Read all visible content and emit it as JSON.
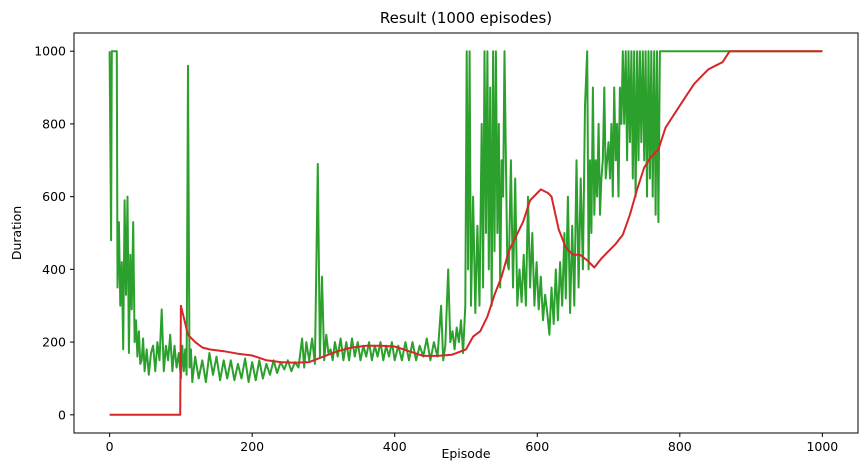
{
  "chart_data": {
    "type": "line",
    "title": "Result (1000 episodes)",
    "xlabel": "Episode",
    "ylabel": "Duration",
    "xlim": [
      -50,
      1050
    ],
    "ylim": [
      -50,
      1050
    ],
    "xticks": [
      0,
      200,
      400,
      600,
      800,
      1000
    ],
    "yticks": [
      0,
      200,
      400,
      600,
      800,
      1000
    ],
    "grid": false,
    "series": [
      {
        "color": "#2ca02c",
        "points": [
          [
            0,
            1000
          ],
          [
            2,
            480
          ],
          [
            3,
            1000
          ],
          [
            10,
            1000
          ],
          [
            11,
            350
          ],
          [
            13,
            530
          ],
          [
            15,
            300
          ],
          [
            17,
            420
          ],
          [
            19,
            180
          ],
          [
            21,
            590
          ],
          [
            23,
            330
          ],
          [
            25,
            600
          ],
          [
            27,
            170
          ],
          [
            29,
            440
          ],
          [
            31,
            290
          ],
          [
            33,
            530
          ],
          [
            35,
            200
          ],
          [
            37,
            260
          ],
          [
            39,
            160
          ],
          [
            41,
            230
          ],
          [
            43,
            140
          ],
          [
            45,
            150
          ],
          [
            47,
            210
          ],
          [
            49,
            120
          ],
          [
            52,
            180
          ],
          [
            55,
            110
          ],
          [
            58,
            170
          ],
          [
            61,
            190
          ],
          [
            64,
            120
          ],
          [
            67,
            200
          ],
          [
            70,
            150
          ],
          [
            73,
            290
          ],
          [
            76,
            120
          ],
          [
            79,
            190
          ],
          [
            82,
            150
          ],
          [
            85,
            220
          ],
          [
            88,
            120
          ],
          [
            91,
            190
          ],
          [
            94,
            130
          ],
          [
            97,
            170
          ],
          [
            100,
            100
          ],
          [
            102,
            190
          ],
          [
            104,
            120
          ],
          [
            106,
            180
          ],
          [
            108,
            110
          ],
          [
            110,
            960
          ],
          [
            112,
            130
          ],
          [
            114,
            180
          ],
          [
            116,
            90
          ],
          [
            120,
            160
          ],
          [
            125,
            100
          ],
          [
            130,
            150
          ],
          [
            135,
            90
          ],
          [
            140,
            170
          ],
          [
            145,
            110
          ],
          [
            150,
            160
          ],
          [
            155,
            95
          ],
          [
            160,
            150
          ],
          [
            165,
            100
          ],
          [
            170,
            150
          ],
          [
            175,
            95
          ],
          [
            180,
            140
          ],
          [
            185,
            100
          ],
          [
            190,
            155
          ],
          [
            195,
            90
          ],
          [
            200,
            145
          ],
          [
            205,
            95
          ],
          [
            210,
            150
          ],
          [
            215,
            100
          ],
          [
            220,
            140
          ],
          [
            225,
            110
          ],
          [
            230,
            150
          ],
          [
            235,
            115
          ],
          [
            240,
            145
          ],
          [
            245,
            125
          ],
          [
            250,
            150
          ],
          [
            255,
            120
          ],
          [
            260,
            145
          ],
          [
            265,
            130
          ],
          [
            270,
            210
          ],
          [
            273,
            130
          ],
          [
            276,
            200
          ],
          [
            280,
            150
          ],
          [
            284,
            210
          ],
          [
            288,
            140
          ],
          [
            292,
            690
          ],
          [
            295,
            160
          ],
          [
            298,
            380
          ],
          [
            301,
            150
          ],
          [
            304,
            220
          ],
          [
            307,
            170
          ],
          [
            310,
            180
          ],
          [
            313,
            150
          ],
          [
            316,
            200
          ],
          [
            320,
            160
          ],
          [
            324,
            210
          ],
          [
            328,
            150
          ],
          [
            332,
            200
          ],
          [
            336,
            150
          ],
          [
            340,
            210
          ],
          [
            344,
            160
          ],
          [
            348,
            200
          ],
          [
            352,
            150
          ],
          [
            356,
            190
          ],
          [
            360,
            160
          ],
          [
            364,
            200
          ],
          [
            368,
            150
          ],
          [
            372,
            190
          ],
          [
            376,
            160
          ],
          [
            380,
            200
          ],
          [
            384,
            150
          ],
          [
            388,
            190
          ],
          [
            392,
            160
          ],
          [
            396,
            200
          ],
          [
            400,
            150
          ],
          [
            405,
            190
          ],
          [
            410,
            150
          ],
          [
            415,
            200
          ],
          [
            420,
            150
          ],
          [
            425,
            200
          ],
          [
            430,
            150
          ],
          [
            435,
            190
          ],
          [
            440,
            160
          ],
          [
            445,
            210
          ],
          [
            450,
            150
          ],
          [
            455,
            200
          ],
          [
            460,
            160
          ],
          [
            465,
            300
          ],
          [
            468,
            150
          ],
          [
            471,
            190
          ],
          [
            475,
            400
          ],
          [
            478,
            200
          ],
          [
            481,
            230
          ],
          [
            484,
            180
          ],
          [
            487,
            240
          ],
          [
            490,
            200
          ],
          [
            493,
            260
          ],
          [
            496,
            170
          ],
          [
            499,
            300
          ],
          [
            501,
            1000
          ],
          [
            503,
            400
          ],
          [
            505,
            1000
          ],
          [
            507,
            300
          ],
          [
            510,
            600
          ],
          [
            513,
            280
          ],
          [
            516,
            520
          ],
          [
            519,
            300
          ],
          [
            522,
            800
          ],
          [
            524,
            350
          ],
          [
            526,
            1000
          ],
          [
            528,
            500
          ],
          [
            530,
            1000
          ],
          [
            532,
            400
          ],
          [
            534,
            900
          ],
          [
            536,
            300
          ],
          [
            538,
            1000
          ],
          [
            540,
            450
          ],
          [
            542,
            1000
          ],
          [
            544,
            500
          ],
          [
            546,
            800
          ],
          [
            548,
            350
          ],
          [
            550,
            700
          ],
          [
            552,
            600
          ],
          [
            554,
            1000
          ],
          [
            556,
            700
          ],
          [
            558,
            420
          ],
          [
            560,
            400
          ],
          [
            563,
            700
          ],
          [
            566,
            350
          ],
          [
            569,
            650
          ],
          [
            572,
            300
          ],
          [
            575,
            400
          ],
          [
            578,
            310
          ],
          [
            581,
            440
          ],
          [
            584,
            300
          ],
          [
            587,
            600
          ],
          [
            590,
            350
          ],
          [
            593,
            500
          ],
          [
            596,
            300
          ],
          [
            599,
            420
          ],
          [
            602,
            290
          ],
          [
            605,
            380
          ],
          [
            608,
            260
          ],
          [
            611,
            330
          ],
          [
            614,
            280
          ],
          [
            617,
            220
          ],
          [
            620,
            350
          ],
          [
            623,
            250
          ],
          [
            626,
            400
          ],
          [
            629,
            260
          ],
          [
            632,
            420
          ],
          [
            635,
            300
          ],
          [
            638,
            500
          ],
          [
            640,
            320
          ],
          [
            643,
            600
          ],
          [
            646,
            280
          ],
          [
            649,
            520
          ],
          [
            652,
            300
          ],
          [
            655,
            700
          ],
          [
            658,
            350
          ],
          [
            661,
            650
          ],
          [
            664,
            400
          ],
          [
            667,
            850
          ],
          [
            670,
            1000
          ],
          [
            672,
            400
          ],
          [
            674,
            700
          ],
          [
            676,
            500
          ],
          [
            678,
            900
          ],
          [
            680,
            550
          ],
          [
            682,
            700
          ],
          [
            684,
            600
          ],
          [
            686,
            800
          ],
          [
            688,
            550
          ],
          [
            690,
            650
          ],
          [
            692,
            700
          ],
          [
            694,
            900
          ],
          [
            696,
            650
          ],
          [
            698,
            700
          ],
          [
            700,
            750
          ],
          [
            702,
            650
          ],
          [
            704,
            800
          ],
          [
            706,
            600
          ],
          [
            708,
            900
          ],
          [
            710,
            700
          ],
          [
            712,
            800
          ],
          [
            714,
            600
          ],
          [
            716,
            900
          ],
          [
            718,
            800
          ],
          [
            720,
            1000
          ],
          [
            722,
            800
          ],
          [
            724,
            1000
          ],
          [
            726,
            700
          ],
          [
            728,
            1000
          ],
          [
            730,
            750
          ],
          [
            732,
            1000
          ],
          [
            734,
            650
          ],
          [
            736,
            1000
          ],
          [
            738,
            600
          ],
          [
            740,
            1000
          ],
          [
            742,
            700
          ],
          [
            744,
            1000
          ],
          [
            746,
            750
          ],
          [
            748,
            1000
          ],
          [
            750,
            700
          ],
          [
            752,
            1000
          ],
          [
            754,
            600
          ],
          [
            756,
            1000
          ],
          [
            758,
            650
          ],
          [
            760,
            1000
          ],
          [
            762,
            600
          ],
          [
            764,
            1000
          ],
          [
            766,
            550
          ],
          [
            768,
            1000
          ],
          [
            770,
            530
          ],
          [
            772,
            1000
          ],
          [
            1000,
            1000
          ]
        ]
      },
      {
        "color": "#d62728",
        "points": [
          [
            0,
            0
          ],
          [
            99,
            0
          ],
          [
            100,
            300
          ],
          [
            110,
            220
          ],
          [
            120,
            200
          ],
          [
            130,
            185
          ],
          [
            140,
            180
          ],
          [
            160,
            175
          ],
          [
            180,
            168
          ],
          [
            200,
            163
          ],
          [
            220,
            150
          ],
          [
            240,
            145
          ],
          [
            260,
            143
          ],
          [
            280,
            145
          ],
          [
            300,
            160
          ],
          [
            320,
            175
          ],
          [
            340,
            185
          ],
          [
            360,
            190
          ],
          [
            380,
            190
          ],
          [
            400,
            188
          ],
          [
            420,
            175
          ],
          [
            440,
            162
          ],
          [
            460,
            162
          ],
          [
            480,
            165
          ],
          [
            500,
            180
          ],
          [
            510,
            215
          ],
          [
            520,
            230
          ],
          [
            525,
            250
          ],
          [
            530,
            270
          ],
          [
            540,
            330
          ],
          [
            550,
            380
          ],
          [
            560,
            450
          ],
          [
            570,
            490
          ],
          [
            580,
            530
          ],
          [
            590,
            590
          ],
          [
            600,
            610
          ],
          [
            605,
            620
          ],
          [
            615,
            610
          ],
          [
            620,
            600
          ],
          [
            630,
            510
          ],
          [
            640,
            460
          ],
          [
            650,
            440
          ],
          [
            660,
            440
          ],
          [
            670,
            425
          ],
          [
            680,
            405
          ],
          [
            690,
            430
          ],
          [
            700,
            450
          ],
          [
            710,
            470
          ],
          [
            720,
            495
          ],
          [
            730,
            550
          ],
          [
            740,
            620
          ],
          [
            750,
            680
          ],
          [
            760,
            710
          ],
          [
            770,
            730
          ],
          [
            780,
            790
          ],
          [
            790,
            820
          ],
          [
            800,
            850
          ],
          [
            810,
            880
          ],
          [
            820,
            910
          ],
          [
            830,
            930
          ],
          [
            840,
            950
          ],
          [
            850,
            960
          ],
          [
            860,
            970
          ],
          [
            870,
            1000
          ],
          [
            1000,
            1000
          ]
        ]
      }
    ]
  }
}
